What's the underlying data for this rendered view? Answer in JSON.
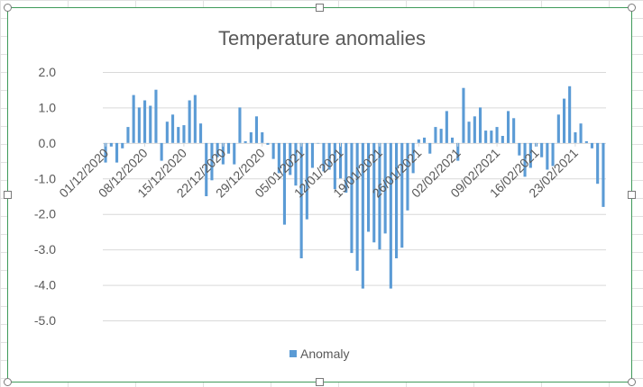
{
  "chart_data": {
    "type": "bar",
    "title": "Temperature anomalies",
    "xlabel": "",
    "ylabel": "",
    "ylim": [
      -5,
      2
    ],
    "y_ticks": [
      "2.0",
      "1.0",
      "0.0",
      "-1.0",
      "-2.0",
      "-3.0",
      "-4.0",
      "-5.0"
    ],
    "y_tick_values": [
      2,
      1,
      0,
      -1,
      -2,
      -3,
      -4,
      -5
    ],
    "x_tick_labels": [
      "01/12/2020",
      "08/12/2020",
      "15/12/2020",
      "22/12/2020",
      "29/12/2020",
      "05/01/2021",
      "12/01/2021",
      "19/01/2021",
      "26/01/2021",
      "02/02/2021",
      "09/02/2021",
      "16/02/2021",
      "23/02/2021"
    ],
    "x_start": "01/12/2020",
    "x_end": "28/02/2021",
    "grid": true,
    "legend": {
      "position": "bottom",
      "entries": [
        "Anomaly"
      ]
    },
    "series": [
      {
        "name": "Anomaly",
        "color": "#5b9bd5",
        "values": [
          -0.55,
          -0.1,
          -0.55,
          -0.15,
          0.45,
          1.35,
          1.0,
          1.2,
          1.05,
          1.5,
          -0.5,
          0.6,
          0.8,
          0.45,
          0.5,
          1.2,
          1.35,
          0.55,
          -1.5,
          -1.05,
          -0.4,
          -0.6,
          -0.3,
          -0.6,
          1.0,
          0.05,
          0.3,
          0.75,
          0.3,
          -0.05,
          -0.45,
          -0.85,
          -2.3,
          -0.9,
          -1.2,
          -3.25,
          -2.15,
          -0.7,
          0.0,
          -0.8,
          -0.75,
          -1.3,
          -1.0,
          -1.4,
          -3.1,
          -3.6,
          -4.1,
          -2.5,
          -2.8,
          -3.0,
          -2.55,
          -4.1,
          -3.25,
          -2.95,
          -1.9,
          -0.85,
          0.1,
          0.15,
          -0.3,
          0.45,
          0.4,
          0.9,
          0.15,
          -0.5,
          1.55,
          0.6,
          0.75,
          1.0,
          0.35,
          0.35,
          0.45,
          0.2,
          0.9,
          0.7,
          -0.35,
          -0.95,
          -0.7,
          -0.1,
          -0.4,
          -0.75,
          -0.65,
          0.8,
          1.25,
          1.6,
          0.3,
          0.55,
          0.05,
          -0.15,
          -1.15,
          -1.8
        ]
      }
    ]
  }
}
